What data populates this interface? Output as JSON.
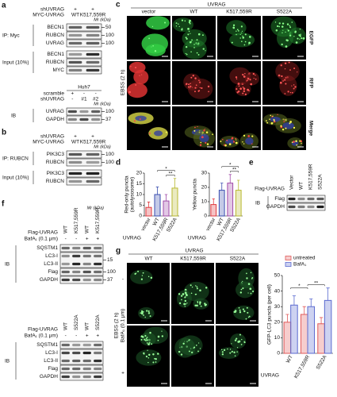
{
  "panels": {
    "a": {
      "label": "a",
      "blot1": {
        "conditions": [
          {
            "name": "shUVRAG",
            "lanes": [
              "+",
              "+"
            ]
          },
          {
            "name": "MYC-UVRAG",
            "lanes": [
              "WT",
              "K517,559R"
            ]
          }
        ],
        "mr_label": "Mr (kDa)",
        "groups": [
          {
            "label": "IP: Myc",
            "rows": [
              {
                "names": [
                  "BECN1"
                ],
                "mr": "50"
              },
              {
                "names": [
                  "RUBCN"
                ],
                "mr": "100"
              },
              {
                "names": [
                  "UVRAG"
                ],
                "mr": "100"
              }
            ]
          },
          {
            "label": "Input (10%)",
            "rows": [
              {
                "names": [
                  "BECN1"
                ]
              },
              {
                "names": [
                  "RUBCN"
                ]
              },
              {
                "names": [
                  "MYC"
                ]
              }
            ]
          }
        ]
      },
      "blot2": {
        "cell_line": "Huh7",
        "conditions": [
          {
            "name": "scramble",
            "lanes": [
              "+",
              "-",
              "-"
            ]
          },
          {
            "name": "shUVRAG",
            "lanes": [
              "-",
              "#1",
              "#2"
            ]
          }
        ],
        "mr_label": "Mr (kDa)",
        "groups": [
          {
            "label": "IB",
            "rows": [
              {
                "names": [
                  "UVRAG"
                ],
                "mr": "100"
              },
              {
                "names": [
                  "GAPDH"
                ],
                "mr": "37"
              }
            ]
          }
        ]
      }
    },
    "b": {
      "label": "b",
      "blot": {
        "conditions": [
          {
            "name": "shUVRAG",
            "lanes": [
              "+",
              "+"
            ]
          },
          {
            "name": "MYC-UVRAG",
            "lanes": [
              "WT",
              "K517,559R"
            ]
          }
        ],
        "mr_label": "Mr (kDa)",
        "groups": [
          {
            "label": "IP: RUBCN",
            "rows": [
              {
                "names": [
                  "PIK3C3"
                ],
                "mr": "100"
              },
              {
                "names": [
                  "RUBCN"
                ],
                "mr": "100"
              }
            ]
          },
          {
            "label": "Input (10%)",
            "rows": [
              {
                "names": [
                  "PIK3C3"
                ]
              },
              {
                "names": [
                  "RUBCN"
                ]
              }
            ]
          }
        ]
      }
    },
    "c": {
      "label": "c",
      "title": "UVRAG",
      "columns": [
        "vector",
        "WT",
        "K517,559R",
        "S522A"
      ],
      "rows": [
        "EGFP",
        "RFP",
        "Merge"
      ],
      "condition": "EBSS (2 h)"
    },
    "d": {
      "label": "d"
    },
    "e": {
      "label": "e",
      "blot": {
        "conditions": [
          {
            "name": "Flag-UVRAG",
            "lanes": [
              "Vector",
              "WT",
              "K517,559R",
              "S522A"
            ]
          }
        ],
        "groups": [
          {
            "label": "IB",
            "rows": [
              {
                "names": [
                  "Flag"
                ]
              },
              {
                "names": [
                  "GAPDH"
                ]
              }
            ]
          }
        ]
      }
    },
    "f": {
      "label": "f",
      "blot1": {
        "conditions": [
          {
            "name": "Flag-UVRAG",
            "lanes": [
              "WT",
              "K517,559R",
              "WT",
              "K517,559R"
            ]
          },
          {
            "name": "BafA₁ (0.1 μm)",
            "lanes": [
              "-",
              "-",
              "+",
              "+"
            ]
          }
        ],
        "mr_label": "Mr (kDa)",
        "groups": [
          {
            "label": "IB",
            "rows": [
              {
                "names": [
                  "SQSTM1"
                ]
              },
              {
                "names": [
                  "LC3-I",
                  "LC3-II"
                ],
                "mr": "15"
              },
              {
                "names": [
                  "Flag"
                ],
                "mr": "100"
              },
              {
                "names": [
                  "GAPDH"
                ],
                "mr": "37"
              }
            ]
          }
        ]
      },
      "blot2": {
        "conditions": [
          {
            "name": "Flag-UVRAG",
            "lanes": [
              "WT",
              "S522A",
              "WT",
              "S522A"
            ]
          },
          {
            "name": "BafA₁ (0.1 μm)",
            "lanes": [
              "-",
              "-",
              "+",
              "+"
            ]
          }
        ],
        "groups": [
          {
            "label": "IB",
            "rows": [
              {
                "names": [
                  "SQSTM1"
                ]
              },
              {
                "names": [
                  "LC3-I",
                  "LC3-II"
                ]
              },
              {
                "names": [
                  "Flag"
                ]
              },
              {
                "names": [
                  "GAPDH"
                ]
              }
            ]
          }
        ]
      }
    },
    "g": {
      "label": "g",
      "title": "UVRAG",
      "columns": [
        "WT",
        "K517,559R",
        "S522A"
      ],
      "condition": "EBSS (2 h)",
      "treatment": "BafA₁ (0.1 μm)",
      "rows": [
        "-",
        "+"
      ]
    }
  },
  "chart_data": [
    {
      "type": "bar",
      "ylabel": [
        "Red-only puncta",
        "(autolysosome)"
      ],
      "xlabel": "UVRAG",
      "categories": [
        "vector",
        "WT",
        "K517,559R",
        "S522A"
      ],
      "values": [
        4,
        10,
        7,
        13
      ],
      "errors": [
        2.5,
        3.5,
        3,
        4.5
      ],
      "colors": [
        "#e0393e",
        "#3a4fb0",
        "#a04aa8",
        "#b8b830"
      ],
      "ylim": [
        0,
        20
      ],
      "yticks": [
        0,
        5,
        10,
        15,
        20
      ],
      "annotations": [
        "*",
        "**"
      ]
    },
    {
      "type": "bar",
      "ylabel": "Yellow puncta",
      "xlabel": "UVRAG",
      "categories": [
        "vector",
        "WT",
        "K517,559R",
        "S522A"
      ],
      "values": [
        8,
        18,
        23,
        18
      ],
      "errors": [
        4,
        5,
        6,
        7
      ],
      "colors": [
        "#e0393e",
        "#3a4fb0",
        "#a04aa8",
        "#b8b830"
      ],
      "ylim": [
        0,
        30
      ],
      "yticks": [
        0,
        10,
        20,
        30
      ],
      "annotations": [
        "*",
        "**"
      ]
    },
    {
      "type": "bar",
      "ylabel": "GFP-LC3 puncta (per cell)",
      "xlabel": "UVRAG",
      "categories": [
        "WT",
        "K517,559R",
        "S522A"
      ],
      "series": [
        {
          "name": "untreated",
          "color": "#e05a5a",
          "values": [
            20,
            25,
            19
          ],
          "errors": [
            5,
            5,
            4
          ]
        },
        {
          "name": "BafA₁",
          "color": "#5a6ad0",
          "values": [
            31,
            30,
            34
          ],
          "errors": [
            6,
            5,
            8
          ]
        }
      ],
      "ylim": [
        0,
        50
      ],
      "yticks": [
        0,
        10,
        20,
        30,
        40,
        50
      ],
      "annotations": [
        "*",
        "**"
      ]
    }
  ]
}
